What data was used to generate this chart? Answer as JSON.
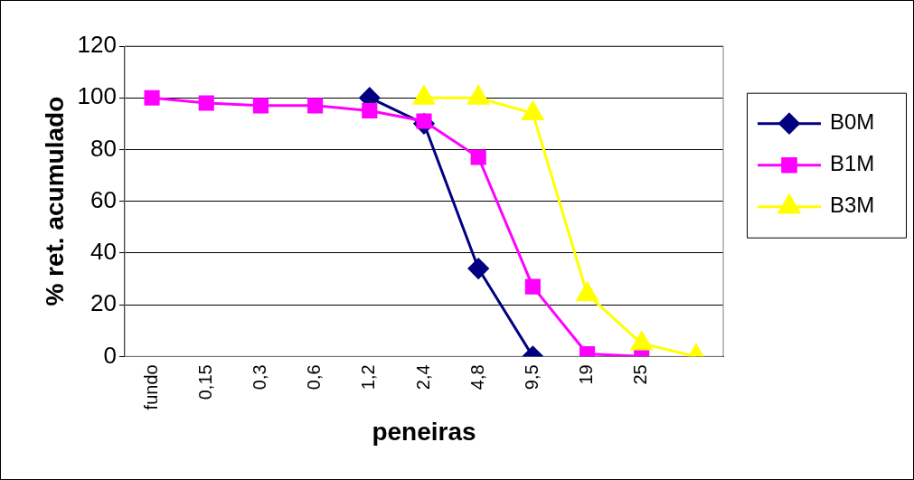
{
  "chart_data": {
    "type": "line",
    "xlabel": "peneiras",
    "ylabel": "% ret. acumulado",
    "categories": [
      "fundo",
      "0,15",
      "0,3",
      "0,6",
      "1,2",
      "2,4",
      "4,8",
      "9,5",
      "19",
      "25",
      null
    ],
    "series": [
      {
        "name": "B0M",
        "color": "#000080",
        "marker": "diamond",
        "values": [
          null,
          null,
          null,
          null,
          100,
          90,
          34,
          0,
          null,
          null,
          null
        ]
      },
      {
        "name": "B1M",
        "color": "#ff00ff",
        "marker": "square",
        "values": [
          100,
          98,
          97,
          97,
          95,
          91,
          77,
          27,
          1,
          0,
          null
        ]
      },
      {
        "name": "B3M",
        "color": "#ffff00",
        "marker": "triangle",
        "values": [
          null,
          null,
          null,
          null,
          null,
          100,
          100,
          94,
          24,
          5,
          0
        ]
      }
    ],
    "ylim": [
      0,
      120
    ],
    "yticks": [
      0,
      20,
      40,
      60,
      80,
      100,
      120
    ],
    "grid": "y",
    "legend": "right"
  }
}
